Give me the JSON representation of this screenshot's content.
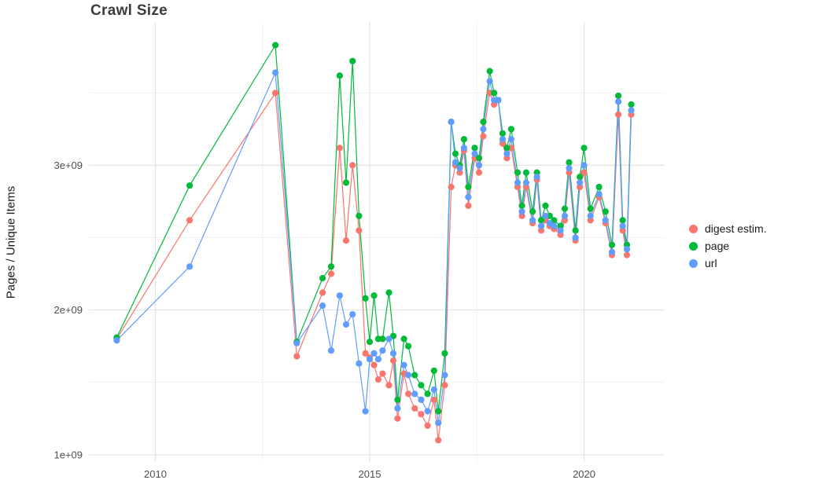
{
  "chart_data": {
    "type": "line",
    "title": "Crawl Size",
    "xlabel": "",
    "ylabel": "Pages / Unique Items",
    "y_unit": "1e9",
    "x_domain": [
      2008.45,
      2021.88
    ],
    "y_domain": [
      0.95,
      3.99
    ],
    "grid": true,
    "legend_position": "right",
    "y_ticks": [
      {
        "value": 1,
        "label": "1e+09"
      },
      {
        "value": 2,
        "label": "2e+09"
      },
      {
        "value": 3,
        "label": "3e+09"
      }
    ],
    "x_ticks": [
      {
        "value": 2010,
        "label": "2010"
      },
      {
        "value": 2015,
        "label": "2015"
      },
      {
        "value": 2020,
        "label": "2020"
      }
    ],
    "y_minor": [
      1.5,
      2.5,
      3.5
    ],
    "x_minor": [
      2012.5,
      2017.5
    ],
    "x": [
      2009.1,
      2010.8,
      2012.8,
      2013.3,
      2013.9,
      2014.1,
      2014.3,
      2014.45,
      2014.6,
      2014.75,
      2014.9,
      2015.0,
      2015.1,
      2015.2,
      2015.3,
      2015.45,
      2015.55,
      2015.65,
      2015.8,
      2015.9,
      2016.05,
      2016.2,
      2016.35,
      2016.5,
      2016.6,
      2016.75,
      2016.9,
      2017.0,
      2017.1,
      2017.2,
      2017.3,
      2017.45,
      2017.55,
      2017.65,
      2017.8,
      2017.9,
      2018.0,
      2018.1,
      2018.2,
      2018.3,
      2018.45,
      2018.55,
      2018.65,
      2018.8,
      2018.9,
      2019.0,
      2019.1,
      2019.2,
      2019.3,
      2019.45,
      2019.55,
      2019.65,
      2019.8,
      2019.9,
      2020.0,
      2020.15,
      2020.35,
      2020.5,
      2020.65,
      2020.8,
      2020.9,
      2021.0,
      2021.1
    ],
    "series": [
      {
        "name": "digest estim.",
        "color": "#F8766D",
        "values": [
          1.8,
          2.62,
          3.5,
          1.68,
          2.12,
          2.25,
          3.12,
          2.48,
          3.0,
          2.55,
          1.7,
          1.67,
          1.62,
          1.52,
          1.56,
          1.48,
          1.65,
          1.25,
          1.56,
          1.42,
          1.32,
          1.28,
          1.2,
          1.38,
          1.1,
          1.48,
          2.85,
          3.0,
          2.95,
          3.1,
          2.72,
          3.05,
          2.95,
          3.2,
          3.5,
          3.42,
          3.45,
          3.15,
          3.05,
          3.12,
          2.85,
          2.65,
          2.85,
          2.6,
          2.9,
          2.55,
          2.62,
          2.58,
          2.56,
          2.52,
          2.62,
          2.95,
          2.48,
          2.85,
          2.95,
          2.62,
          2.78,
          2.6,
          2.38,
          3.35,
          2.55,
          2.38,
          3.35
        ]
      },
      {
        "name": "page",
        "color": "#00BA38",
        "values": [
          1.81,
          2.86,
          3.83,
          1.78,
          2.22,
          2.3,
          3.62,
          2.88,
          3.72,
          2.65,
          2.08,
          1.78,
          2.1,
          1.8,
          1.8,
          2.12,
          1.82,
          1.38,
          1.8,
          1.75,
          1.55,
          1.48,
          1.42,
          1.58,
          1.3,
          1.7,
          3.3,
          3.08,
          3.0,
          3.18,
          2.85,
          3.12,
          3.05,
          3.3,
          3.65,
          3.5,
          3.45,
          3.22,
          3.12,
          3.25,
          2.95,
          2.72,
          2.95,
          2.68,
          2.95,
          2.62,
          2.72,
          2.65,
          2.62,
          2.58,
          2.7,
          3.02,
          2.55,
          2.92,
          3.12,
          2.7,
          2.85,
          2.68,
          2.45,
          3.48,
          2.62,
          2.45,
          3.42
        ]
      },
      {
        "name": "url",
        "color": "#619CFF",
        "values": [
          1.79,
          2.3,
          3.64,
          1.77,
          2.03,
          1.72,
          2.1,
          1.9,
          1.97,
          1.63,
          1.3,
          1.66,
          1.7,
          1.66,
          1.72,
          1.8,
          1.7,
          1.32,
          1.62,
          1.55,
          1.42,
          1.38,
          1.3,
          1.45,
          1.22,
          1.55,
          3.3,
          3.02,
          2.98,
          3.12,
          2.78,
          3.08,
          3.0,
          3.25,
          3.58,
          3.45,
          3.45,
          3.18,
          3.08,
          3.18,
          2.88,
          2.68,
          2.88,
          2.62,
          2.92,
          2.58,
          2.65,
          2.6,
          2.58,
          2.55,
          2.65,
          2.98,
          2.5,
          2.88,
          3.0,
          2.65,
          2.8,
          2.62,
          2.4,
          3.44,
          2.58,
          2.42,
          3.38
        ]
      }
    ]
  },
  "legend": {
    "items": [
      {
        "label": "digest estim.",
        "color": "#F8766D"
      },
      {
        "label": "page",
        "color": "#00BA38"
      },
      {
        "label": "url",
        "color": "#619CFF"
      }
    ]
  },
  "style": {
    "grid_major_color": "#e3e3e3",
    "grid_minor_color": "#f1f1f1",
    "tick_label_color": "#4f4f4f"
  }
}
